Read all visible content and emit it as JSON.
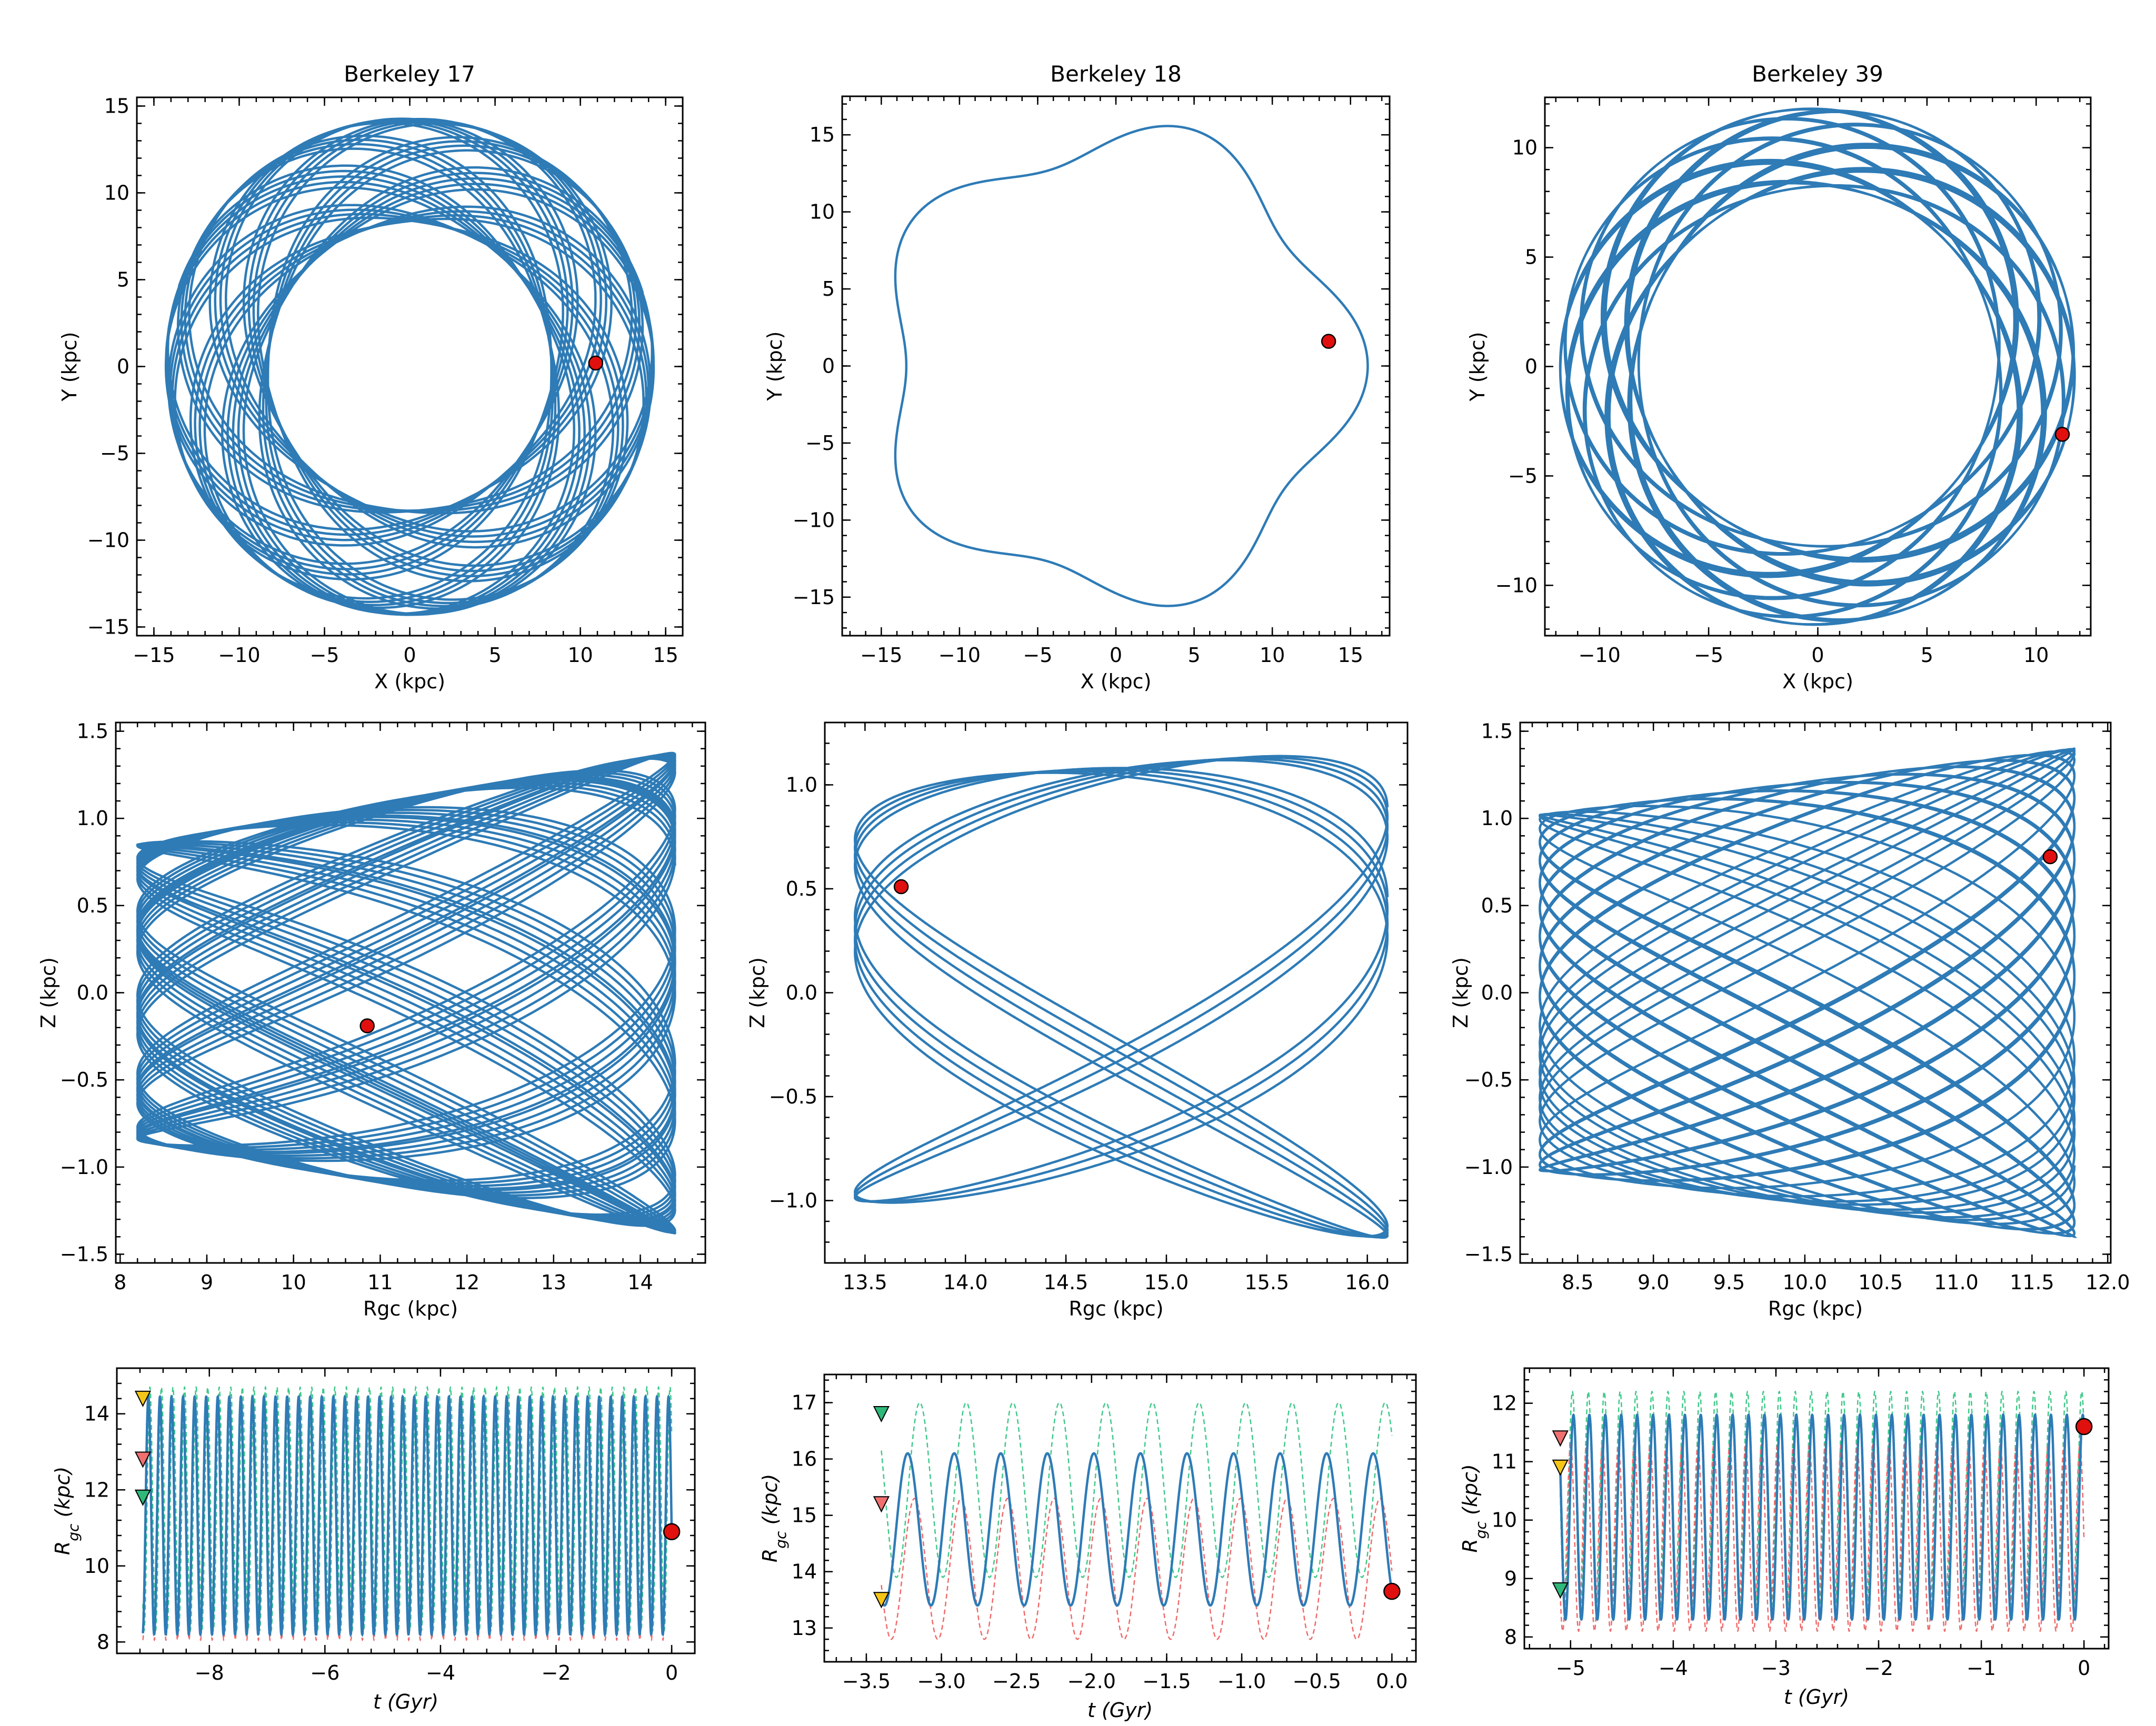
{
  "colors": {
    "orbit": "#2e7bb6",
    "marker_red": "#e0100f",
    "marker_edge": "#000000",
    "dash_green": "#3fc98a",
    "dash_red": "#f06a6a",
    "tri_yellow": "#f5c518",
    "tri_red": "#f07070",
    "tri_green": "#2fb87a"
  },
  "chart_data": [
    {
      "id": "b17-xy",
      "type": "line",
      "title": "Berkeley 17",
      "xlabel": "X (kpc)",
      "ylabel": "Y (kpc)",
      "xlim": [
        -16,
        16
      ],
      "ylim": [
        -15.5,
        15.5
      ],
      "xticks": [
        -15,
        -10,
        -5,
        0,
        5,
        10,
        15
      ],
      "yticks": [
        -15,
        -10,
        -5,
        0,
        5,
        10,
        15
      ],
      "xtick_labels": [
        "−15",
        "−10",
        "−5",
        "0",
        "5",
        "10",
        "15"
      ],
      "ytick_labels": [
        "−15",
        "−10",
        "−5",
        "0",
        "5",
        "10",
        "15"
      ],
      "rosette": {
        "rmin": 8.3,
        "rmax": 14.3,
        "cycles": 46,
        "turns": 33.4,
        "phase": 0.3
      },
      "current_position": {
        "x": 10.9,
        "y": 0.2
      }
    },
    {
      "id": "b18-xy",
      "type": "line",
      "title": "Berkeley 18",
      "xlabel": "X (kpc)",
      "ylabel": "Y (kpc)",
      "xlim": [
        -17.5,
        17.5
      ],
      "ylim": [
        -17.5,
        17.5
      ],
      "xticks": [
        -15,
        -10,
        -5,
        0,
        5,
        10,
        15
      ],
      "yticks": [
        -15,
        -10,
        -5,
        0,
        5,
        10,
        15
      ],
      "xtick_labels": [
        "−15",
        "−10",
        "−5",
        "0",
        "5",
        "10",
        "15"
      ],
      "ytick_labels": [
        "−15",
        "−10",
        "−5",
        "0",
        "5",
        "10",
        "15"
      ],
      "rosette": {
        "rmin": 13.4,
        "rmax": 16.1,
        "cycles": 11,
        "turns": 2.2,
        "phase": 0.0
      },
      "current_position": {
        "x": 13.6,
        "y": 1.6
      }
    },
    {
      "id": "b39-xy",
      "type": "line",
      "title": "Berkeley 39",
      "xlabel": "X (kpc)",
      "ylabel": "Y (kpc)",
      "xlim": [
        -12.5,
        12.5
      ],
      "ylim": [
        -12.3,
        12.3
      ],
      "xticks": [
        -10,
        -5,
        0,
        5,
        10
      ],
      "yticks": [
        -10,
        -5,
        0,
        5,
        10
      ],
      "xtick_labels": [
        "−10",
        "−5",
        "0",
        "5",
        "10"
      ],
      "ytick_labels": [
        "−10",
        "−5",
        "0",
        "5",
        "10"
      ],
      "rosette": {
        "rmin": 8.2,
        "rmax": 11.8,
        "cycles": 33,
        "turns": 25.4,
        "phase": 1.2
      },
      "current_position": {
        "x": 11.2,
        "y": -3.1
      }
    },
    {
      "id": "b17-rz",
      "type": "line",
      "xlabel": "Rgc (kpc)",
      "ylabel": "Z (kpc)",
      "xlim": [
        7.95,
        14.75
      ],
      "ylim": [
        -1.55,
        1.55
      ],
      "xticks": [
        8,
        9,
        10,
        11,
        12,
        13,
        14
      ],
      "yticks": [
        -1.5,
        -1.0,
        -0.5,
        0.0,
        0.5,
        1.0,
        1.5
      ],
      "xtick_labels": [
        "8",
        "9",
        "10",
        "11",
        "12",
        "13",
        "14"
      ],
      "ytick_labels": [
        "−1.5",
        "−1.0",
        "−0.5",
        "0.0",
        "0.5",
        "1.0",
        "1.5"
      ],
      "lissajous": {
        "rmin": 8.2,
        "rmax": 14.4,
        "zamp": 0.85,
        "zamp_outer": 1.38,
        "fr": 46,
        "fz": 29.3,
        "phase": 0.7
      },
      "current_position": {
        "x": 10.85,
        "y": -0.19
      }
    },
    {
      "id": "b18-rz",
      "type": "line",
      "xlabel": "Rgc (kpc)",
      "ylabel": "Z (kpc)",
      "xlim": [
        13.3,
        16.2
      ],
      "ylim": [
        -1.3,
        1.3
      ],
      "xticks": [
        13.5,
        14.0,
        14.5,
        15.0,
        15.5,
        16.0
      ],
      "yticks": [
        -1.0,
        -0.5,
        0.0,
        0.5,
        1.0
      ],
      "xtick_labels": [
        "13.5",
        "14.0",
        "14.5",
        "15.0",
        "15.5",
        "16.0"
      ],
      "ytick_labels": [
        "−1.0",
        "−0.5",
        "0.0",
        "0.5",
        "1.0"
      ],
      "lissajous": {
        "rmin": 13.45,
        "rmax": 16.1,
        "zamp": 1.0,
        "zamp_outer": 1.18,
        "fr": 11,
        "fz": 7.3,
        "phase": 0.4
      },
      "current_position": {
        "x": 13.68,
        "y": 0.51
      }
    },
    {
      "id": "b39-rz",
      "type": "line",
      "xlabel": "Rgc (kpc)",
      "ylabel": "Z (kpc)",
      "xlim": [
        8.12,
        12.02
      ],
      "ylim": [
        -1.55,
        1.55
      ],
      "xticks": [
        8.5,
        9.0,
        9.5,
        10.0,
        10.5,
        11.0,
        11.5,
        12.0
      ],
      "yticks": [
        -1.5,
        -1.0,
        -0.5,
        0.0,
        0.5,
        1.0,
        1.5
      ],
      "xtick_labels": [
        "8.5",
        "9.0",
        "9.5",
        "10.0",
        "10.5",
        "11.0",
        "11.5",
        "12.0"
      ],
      "ytick_labels": [
        "−1.5",
        "−1.0",
        "−0.5",
        "0.0",
        "0.5",
        "1.0",
        "1.5"
      ],
      "lissajous": {
        "rmin": 8.25,
        "rmax": 11.78,
        "zamp": 1.02,
        "zamp_outer": 1.4,
        "fr": 33,
        "fz": 21.7,
        "phase": 1.1
      },
      "current_position": {
        "x": 11.62,
        "y": 0.78
      }
    },
    {
      "id": "b17-rt",
      "type": "line",
      "xlabel": "t (Gyr)",
      "ylabel": "Rgc (kpc)",
      "xlim": [
        -9.6,
        0.4
      ],
      "ylim": [
        7.7,
        15.2
      ],
      "xticks": [
        -8,
        -6,
        -4,
        -2,
        0
      ],
      "yticks": [
        8,
        10,
        12,
        14
      ],
      "xtick_labels": [
        "−8",
        "−6",
        "−4",
        "−2",
        "0"
      ],
      "ytick_labels": [
        "8",
        "10",
        "12",
        "14"
      ],
      "t_start": -9.15,
      "t_end": 0,
      "orbit": {
        "rmin": 8.2,
        "rmax": 14.45,
        "period": 0.2,
        "r_now": 10.9
      },
      "upper_dashed": {
        "rmin": 8.3,
        "rmax": 14.7,
        "period": 0.2
      },
      "lower_dashed": {
        "rmin": 8.05,
        "rmax": 14.4,
        "period": 0.2
      },
      "start_markers": [
        {
          "t": -9.15,
          "r": 14.4,
          "color": "yellow"
        },
        {
          "t": -9.15,
          "r": 12.8,
          "color": "red"
        },
        {
          "t": -9.15,
          "r": 11.8,
          "color": "green"
        }
      ],
      "current_position": {
        "t": 0.0,
        "r": 10.9
      }
    },
    {
      "id": "b18-rt",
      "type": "line",
      "xlabel": "t (Gyr)",
      "ylabel": "Rgc (kpc)",
      "xlim": [
        -3.78,
        0.16
      ],
      "ylim": [
        12.4,
        17.5
      ],
      "xticks": [
        -3.5,
        -3.0,
        -2.5,
        -2.0,
        -1.5,
        -1.0,
        -0.5,
        0.0
      ],
      "yticks": [
        13,
        14,
        15,
        16,
        17
      ],
      "xtick_labels": [
        "−3.5",
        "−3.0",
        "−2.5",
        "−2.0",
        "−1.5",
        "−1.0",
        "−0.5",
        "0.0"
      ],
      "ytick_labels": [
        "13",
        "14",
        "15",
        "16",
        "17"
      ],
      "t_start": -3.4,
      "t_end": 0,
      "orbit": {
        "rmin": 13.4,
        "rmax": 16.1,
        "period": 0.31,
        "r_now": 13.65
      },
      "upper_dashed": {
        "rmin": 13.9,
        "rmax": 17.0,
        "period": 0.31
      },
      "lower_dashed": {
        "rmin": 12.8,
        "rmax": 15.3,
        "period": 0.31
      },
      "start_markers": [
        {
          "t": -3.4,
          "r": 16.8,
          "color": "green"
        },
        {
          "t": -3.4,
          "r": 15.2,
          "color": "red"
        },
        {
          "t": -3.4,
          "r": 13.5,
          "color": "yellow"
        }
      ],
      "current_position": {
        "t": 0.0,
        "r": 13.65
      }
    },
    {
      "id": "b39-rt",
      "type": "line",
      "xlabel": "t (Gyr)",
      "ylabel": "Rgc (kpc)",
      "xlim": [
        -5.45,
        0.24
      ],
      "ylim": [
        7.8,
        12.6
      ],
      "xticks": [
        -5,
        -4,
        -3,
        -2,
        -1,
        0
      ],
      "yticks": [
        8,
        9,
        10,
        11,
        12
      ],
      "xtick_labels": [
        "−5",
        "−4",
        "−3",
        "−2",
        "−1",
        "0"
      ],
      "ytick_labels": [
        "8",
        "9",
        "10",
        "11",
        "12"
      ],
      "t_start": -5.1,
      "t_end": 0,
      "orbit": {
        "rmin": 8.3,
        "rmax": 11.8,
        "period": 0.155,
        "r_now": 11.6
      },
      "upper_dashed": {
        "rmin": 8.5,
        "rmax": 12.2,
        "period": 0.155
      },
      "lower_dashed": {
        "rmin": 8.1,
        "rmax": 11.3,
        "period": 0.155
      },
      "start_markers": [
        {
          "t": -5.1,
          "r": 11.4,
          "color": "red"
        },
        {
          "t": -5.1,
          "r": 10.9,
          "color": "yellow"
        },
        {
          "t": -5.1,
          "r": 8.8,
          "color": "green"
        }
      ],
      "current_position": {
        "t": 0.0,
        "r": 11.6
      }
    }
  ]
}
